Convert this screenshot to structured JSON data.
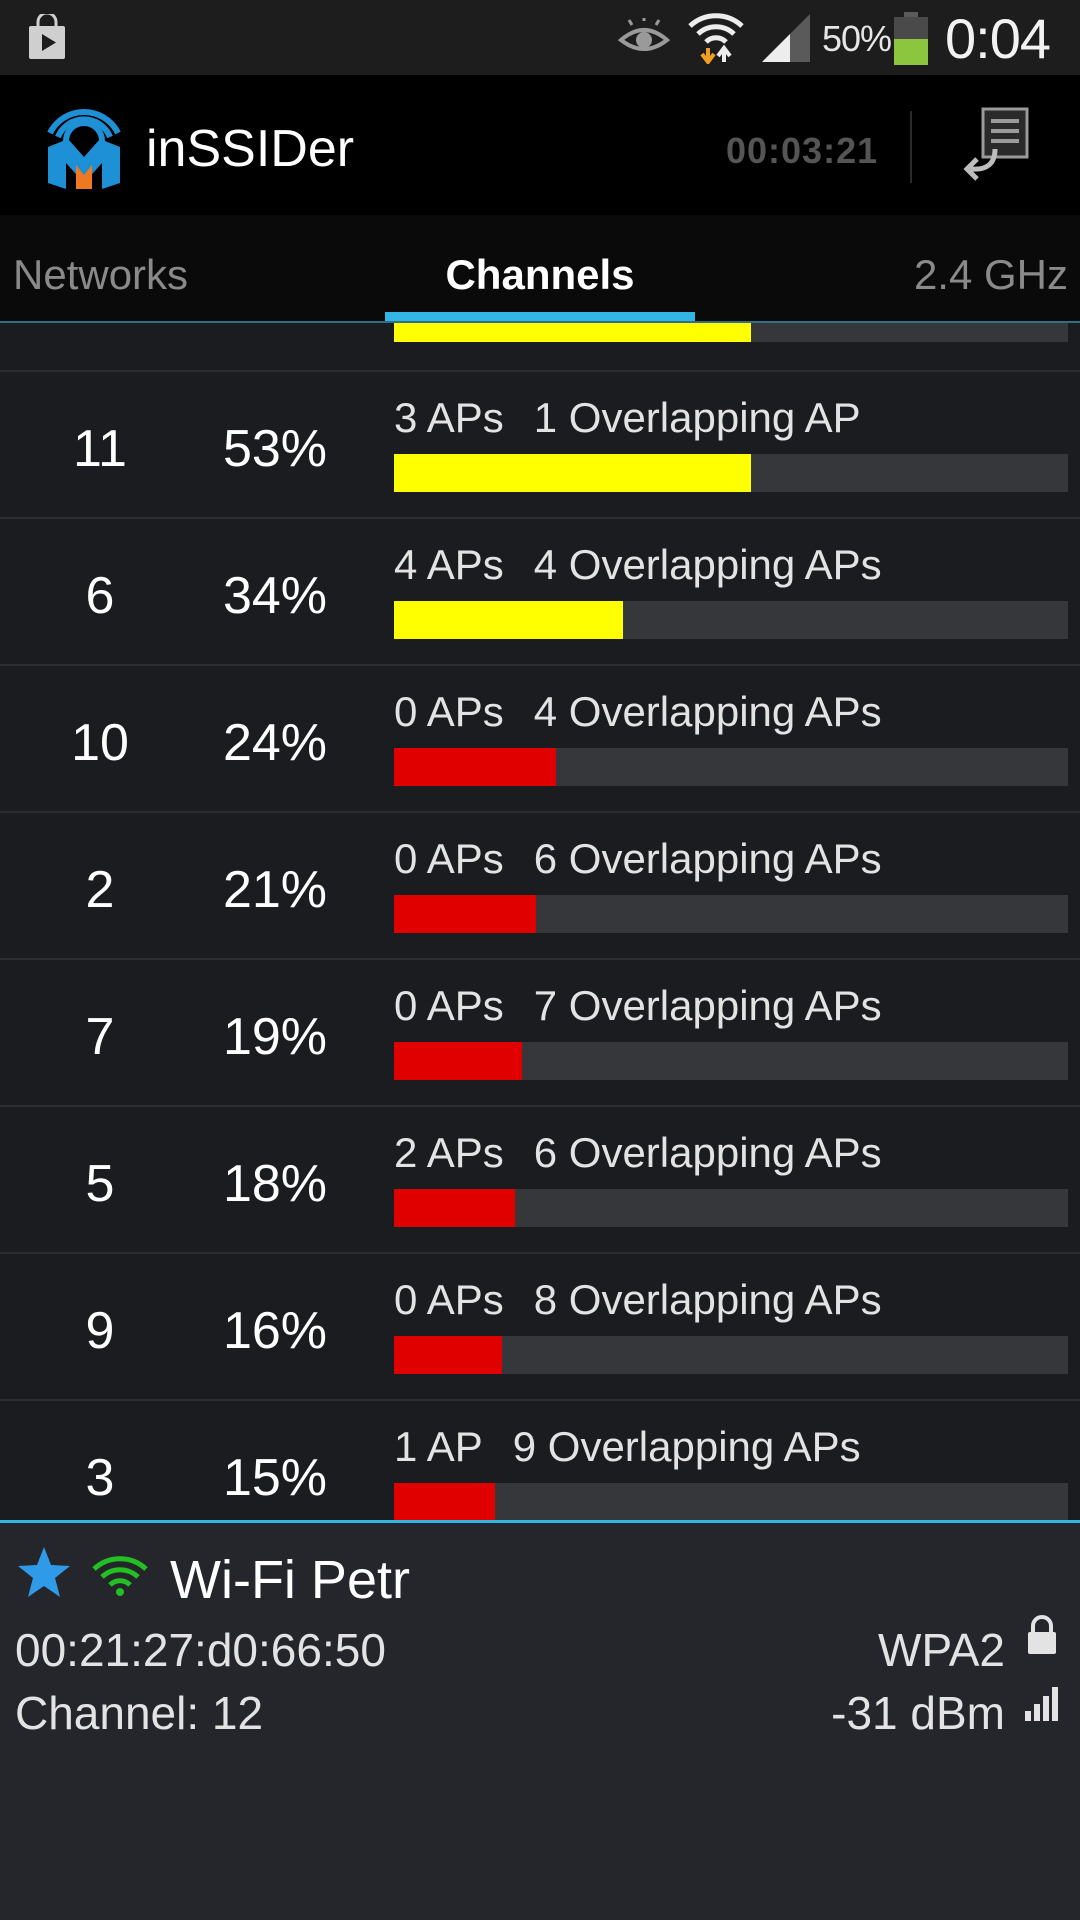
{
  "status_bar": {
    "icons": [
      "play-store-icon",
      "eye-icon",
      "wifi-data-icon",
      "cell-signal-icon",
      "battery-icon"
    ],
    "battery_percent": "50%",
    "time": "0:04",
    "colors": {
      "battery": "#8cc63f"
    }
  },
  "app": {
    "title": "inSSIDer",
    "timer": "00:03:21",
    "logo_icon": "inssider-logo-icon",
    "export_icon": "export-log-icon"
  },
  "tabs": {
    "networks": "Networks",
    "channels": "Channels",
    "band": "2.4 GHz",
    "active": "channels"
  },
  "colors": {
    "accent": "#33b5e5",
    "good": "#ffff00",
    "bad": "#e00000"
  },
  "partial_row": {
    "rating": 0.53,
    "color": "yellow"
  },
  "channels": [
    {
      "channel": "11",
      "percent": "53%",
      "rating": 0.53,
      "aps": "3 APs",
      "overlap": "1 Overlapping AP",
      "color": "yellow"
    },
    {
      "channel": "6",
      "percent": "34%",
      "rating": 0.34,
      "aps": "4 APs",
      "overlap": "4 Overlapping APs",
      "color": "yellow"
    },
    {
      "channel": "10",
      "percent": "24%",
      "rating": 0.24,
      "aps": "0 APs",
      "overlap": "4 Overlapping APs",
      "color": "red"
    },
    {
      "channel": "2",
      "percent": "21%",
      "rating": 0.21,
      "aps": "0 APs",
      "overlap": "6 Overlapping APs",
      "color": "red"
    },
    {
      "channel": "7",
      "percent": "19%",
      "rating": 0.19,
      "aps": "0 APs",
      "overlap": "7 Overlapping APs",
      "color": "red"
    },
    {
      "channel": "5",
      "percent": "18%",
      "rating": 0.18,
      "aps": "2 APs",
      "overlap": "6 Overlapping APs",
      "color": "red"
    },
    {
      "channel": "9",
      "percent": "16%",
      "rating": 0.16,
      "aps": "0 APs",
      "overlap": "8 Overlapping APs",
      "color": "red"
    },
    {
      "channel": "3",
      "percent": "15%",
      "rating": 0.15,
      "aps": "1 AP",
      "overlap": "9 Overlapping APs",
      "color": "red"
    }
  ],
  "connected": {
    "ssid": "Wi-Fi Petr",
    "mac": "00:21:27:d0:66:50",
    "channel": "Channel: 12",
    "security": "WPA2",
    "signal": "-31 dBm",
    "icons": [
      "favorite-star-icon",
      "wifi-signal-icon",
      "lock-icon",
      "signal-bars-icon"
    ]
  }
}
